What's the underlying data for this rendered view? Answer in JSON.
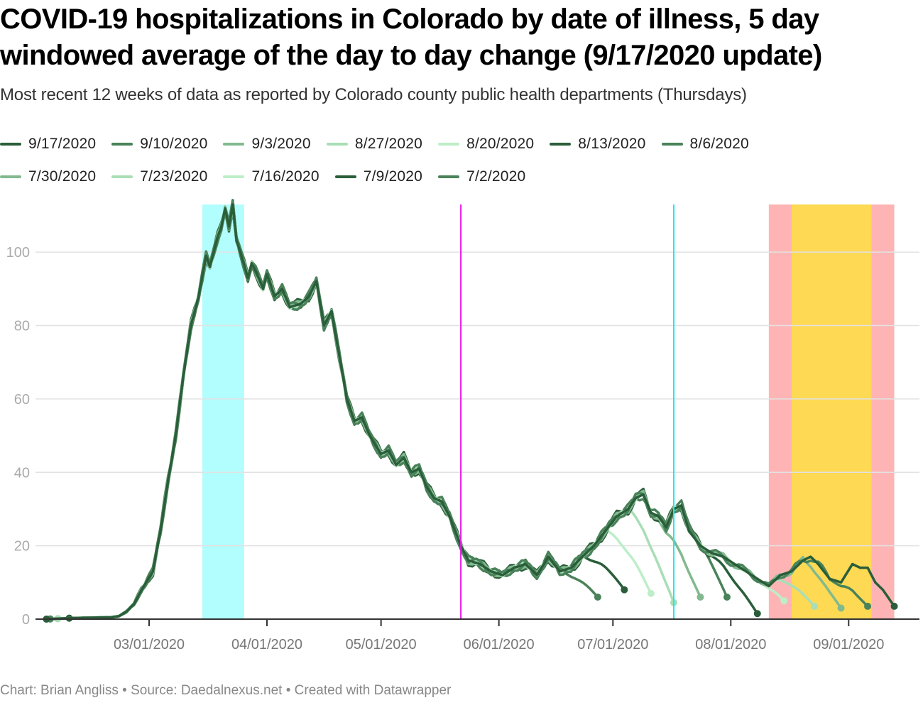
{
  "header": {
    "title": "COVID-19 hospitalizations in Colorado by date of illness, 5 day windowed average of the day to day change (9/17/2020 update)",
    "subtitle": "Most recent 12 weeks of data as reported by Colorado county public health departments (Thursdays)"
  },
  "legend": [
    {
      "label": "9/17/2020",
      "color": "#2a5e3a"
    },
    {
      "label": "9/10/2020",
      "color": "#4a825a"
    },
    {
      "label": "9/3/2020",
      "color": "#82b98f"
    },
    {
      "label": "8/27/2020",
      "color": "#a9deb6"
    },
    {
      "label": "8/20/2020",
      "color": "#bdeec8"
    },
    {
      "label": "8/13/2020",
      "color": "#2a5e3a"
    },
    {
      "label": "8/6/2020",
      "color": "#4a825a"
    },
    {
      "label": "7/30/2020",
      "color": "#82b98f"
    },
    {
      "label": "7/23/2020",
      "color": "#a9deb6"
    },
    {
      "label": "7/16/2020",
      "color": "#bdeec8"
    },
    {
      "label": "7/9/2020",
      "color": "#2a5e3a"
    },
    {
      "label": "7/2/2020",
      "color": "#4a825a"
    }
  ],
  "footer": {
    "credit": "Chart: Brian Angliss",
    "separator": "•",
    "source": "Source: Daedalnexus.net",
    "tool": "Created with Datawrapper"
  },
  "chart_data": {
    "type": "line",
    "title": "COVID-19 hospitalizations in Colorado by date of illness, 5 day windowed average of the day to day change (9/17/2020 update)",
    "xlabel": "",
    "ylabel": "",
    "xlim": [
      "2020-01-31",
      "2020-09-23"
    ],
    "ylim": [
      0,
      113
    ],
    "grid": true,
    "legend_position": "top",
    "y_ticks": [
      0,
      20,
      40,
      60,
      80,
      100
    ],
    "x_ticks": [
      {
        "date": "2020-03-01",
        "label": "03/01/2020"
      },
      {
        "date": "2020-04-01",
        "label": "04/01/2020"
      },
      {
        "date": "2020-05-01",
        "label": "05/01/2020"
      },
      {
        "date": "2020-06-01",
        "label": "06/01/2020"
      },
      {
        "date": "2020-07-01",
        "label": "07/01/2020"
      },
      {
        "date": "2020-08-01",
        "label": "08/01/2020"
      },
      {
        "date": "2020-09-01",
        "label": "09/01/2020"
      }
    ],
    "highlight_ranges": [
      {
        "from": "2020-03-15",
        "to": "2020-03-26",
        "color": "#b2fdfd"
      },
      {
        "from": "2020-08-11",
        "to": "2020-09-13",
        "color": "#feb4b4"
      },
      {
        "from": "2020-08-17",
        "to": "2020-09-07",
        "color": "#fed954"
      }
    ],
    "marker_lines": [
      {
        "date": "2020-05-22",
        "color": "#e418e4"
      },
      {
        "date": "2020-07-17",
        "color": "#1ee8f0"
      }
    ],
    "series": [
      {
        "name": "9/17/2020",
        "color": "#2a5e3a",
        "start": "2020-02-03",
        "end": "2020-09-13",
        "end_value": 3.5,
        "tail_days": 0
      },
      {
        "name": "9/10/2020",
        "color": "#4a825a",
        "start": "2020-02-04",
        "end": "2020-09-06",
        "end_value": 3.5,
        "tail_days": 10
      },
      {
        "name": "9/3/2020",
        "color": "#82b98f",
        "start": "2020-02-03",
        "end": "2020-08-30",
        "end_value": 3.0,
        "tail_days": 10
      },
      {
        "name": "8/27/2020",
        "color": "#a9deb6",
        "start": "2020-02-06",
        "end": "2020-08-23",
        "end_value": 3.5,
        "tail_days": 10
      },
      {
        "name": "8/20/2020",
        "color": "#bdeec8",
        "start": "2020-02-06",
        "end": "2020-08-15",
        "end_value": 5.0,
        "tail_days": 9
      },
      {
        "name": "8/13/2020",
        "color": "#2a5e3a",
        "start": "2020-02-03",
        "end": "2020-08-08",
        "end_value": 1.5,
        "tail_days": 13
      },
      {
        "name": "8/6/2020",
        "color": "#4a825a",
        "start": "2020-02-04",
        "end": "2020-07-31",
        "end_value": 6.0,
        "tail_days": 12
      },
      {
        "name": "7/30/2020",
        "color": "#82b98f",
        "start": "2020-02-06",
        "end": "2020-07-24",
        "end_value": 6.0,
        "tail_days": 12
      },
      {
        "name": "7/23/2020",
        "color": "#a9deb6",
        "start": "2020-02-06",
        "end": "2020-07-17",
        "end_value": 4.5,
        "tail_days": 12
      },
      {
        "name": "7/16/2020",
        "color": "#bdeec8",
        "start": "2020-02-06",
        "end": "2020-07-11",
        "end_value": 7.0,
        "tail_days": 12
      },
      {
        "name": "7/9/2020",
        "color": "#2a5e3a",
        "start": "2020-02-09",
        "end": "2020-07-04",
        "end_value": 8.0,
        "tail_days": 11
      },
      {
        "name": "7/2/2020",
        "color": "#4a825a",
        "start": "2020-02-09",
        "end": "2020-06-27",
        "end_value": 6.0,
        "tail_days": 10
      }
    ],
    "base_curve": [
      [
        "2020-02-03",
        0
      ],
      [
        "2020-02-10",
        0.3
      ],
      [
        "2020-02-20",
        0.5
      ],
      [
        "2020-02-22",
        0.8
      ],
      [
        "2020-02-24",
        2
      ],
      [
        "2020-02-26",
        4
      ],
      [
        "2020-02-28",
        8
      ],
      [
        "2020-03-02",
        13
      ],
      [
        "2020-03-04",
        24
      ],
      [
        "2020-03-06",
        38
      ],
      [
        "2020-03-08",
        50
      ],
      [
        "2020-03-10",
        66
      ],
      [
        "2020-03-12",
        80
      ],
      [
        "2020-03-14",
        88
      ],
      [
        "2020-03-16",
        99
      ],
      [
        "2020-03-17",
        96
      ],
      [
        "2020-03-19",
        104
      ],
      [
        "2020-03-20",
        107
      ],
      [
        "2020-03-21",
        112
      ],
      [
        "2020-03-22",
        107
      ],
      [
        "2020-03-23",
        113
      ],
      [
        "2020-03-24",
        103
      ],
      [
        "2020-03-25",
        100
      ],
      [
        "2020-03-27",
        93
      ],
      [
        "2020-03-28",
        97
      ],
      [
        "2020-03-29",
        95
      ],
      [
        "2020-03-31",
        90
      ],
      [
        "2020-04-01",
        94
      ],
      [
        "2020-04-03",
        88
      ],
      [
        "2020-04-05",
        90
      ],
      [
        "2020-04-07",
        85
      ],
      [
        "2020-04-10",
        86
      ],
      [
        "2020-04-12",
        88
      ],
      [
        "2020-04-14",
        92
      ],
      [
        "2020-04-16",
        80
      ],
      [
        "2020-04-18",
        84
      ],
      [
        "2020-04-20",
        72
      ],
      [
        "2020-04-22",
        60
      ],
      [
        "2020-04-24",
        54
      ],
      [
        "2020-04-26",
        55
      ],
      [
        "2020-04-28",
        50
      ],
      [
        "2020-05-01",
        45
      ],
      [
        "2020-05-03",
        46
      ],
      [
        "2020-05-05",
        42
      ],
      [
        "2020-05-07",
        44
      ],
      [
        "2020-05-09",
        40
      ],
      [
        "2020-05-11",
        41
      ],
      [
        "2020-05-13",
        36
      ],
      [
        "2020-05-15",
        33
      ],
      [
        "2020-05-17",
        32
      ],
      [
        "2020-05-19",
        28
      ],
      [
        "2020-05-22",
        20
      ],
      [
        "2020-05-24",
        16
      ],
      [
        "2020-05-27",
        15
      ],
      [
        "2020-05-30",
        13
      ],
      [
        "2020-06-02",
        12
      ],
      [
        "2020-06-05",
        14
      ],
      [
        "2020-06-08",
        15
      ],
      [
        "2020-06-11",
        12
      ],
      [
        "2020-06-14",
        17
      ],
      [
        "2020-06-17",
        13
      ],
      [
        "2020-06-20",
        14
      ],
      [
        "2020-06-23",
        17
      ],
      [
        "2020-06-26",
        20
      ],
      [
        "2020-06-29",
        24
      ],
      [
        "2020-07-02",
        28
      ],
      [
        "2020-07-05",
        30
      ],
      [
        "2020-07-07",
        33
      ],
      [
        "2020-07-09",
        34
      ],
      [
        "2020-07-11",
        29
      ],
      [
        "2020-07-13",
        28
      ],
      [
        "2020-07-15",
        25
      ],
      [
        "2020-07-17",
        30
      ],
      [
        "2020-07-19",
        31
      ],
      [
        "2020-07-21",
        24
      ],
      [
        "2020-07-24",
        20
      ],
      [
        "2020-07-27",
        18
      ],
      [
        "2020-07-30",
        17
      ],
      [
        "2020-08-02",
        15
      ],
      [
        "2020-08-05",
        13
      ],
      [
        "2020-08-08",
        11
      ],
      [
        "2020-08-11",
        9
      ],
      [
        "2020-08-14",
        12
      ],
      [
        "2020-08-17",
        13
      ],
      [
        "2020-08-20",
        16
      ],
      [
        "2020-08-22",
        17
      ],
      [
        "2020-08-24",
        15
      ],
      [
        "2020-08-27",
        11
      ],
      [
        "2020-08-30",
        10
      ],
      [
        "2020-09-02",
        15
      ],
      [
        "2020-09-04",
        14
      ],
      [
        "2020-09-06",
        14
      ],
      [
        "2020-09-08",
        10
      ],
      [
        "2020-09-10",
        8
      ],
      [
        "2020-09-13",
        3.5
      ]
    ]
  }
}
